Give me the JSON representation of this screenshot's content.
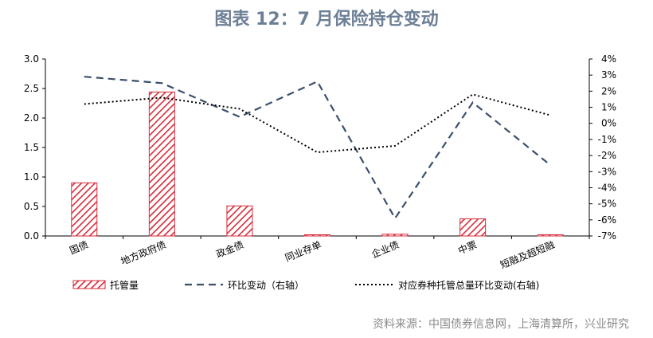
{
  "title": "图表 12：7 月保险持仓变动",
  "source": "资料来源：中国债券信息网，上海清算所，兴业研究",
  "colors": {
    "bar": "#d62b3a",
    "dashed": "#3b4f6b",
    "dotted": "#000000",
    "axis": "#000000"
  },
  "chart_data": {
    "type": "bar",
    "categories": [
      "国债",
      "地方政府债",
      "政金债",
      "同业存单",
      "企业债",
      "中票",
      "短融及超短融"
    ],
    "series": [
      {
        "name": "托管量",
        "type": "bar",
        "axis": "left",
        "values": [
          0.9,
          2.44,
          0.51,
          0.02,
          0.03,
          0.29,
          0.0
        ]
      },
      {
        "name": "环比变动（右轴）",
        "type": "line-dashed",
        "axis": "right",
        "values": [
          2.9,
          2.5,
          0.4,
          2.6,
          -5.9,
          1.3,
          -2.6
        ]
      },
      {
        "name": "对应券种托管总量环比变动(右轴)",
        "type": "line-dotted",
        "axis": "right",
        "values": [
          1.2,
          1.6,
          0.9,
          -1.8,
          -1.4,
          1.8,
          0.5
        ]
      }
    ],
    "left_axis": {
      "ylim": [
        0,
        3.0
      ],
      "ticks": [
        "0.0",
        "0.5",
        "1.0",
        "1.5",
        "2.0",
        "2.5",
        "3.0"
      ]
    },
    "right_axis": {
      "ylim": [
        -7,
        4
      ],
      "ticks": [
        "-7%",
        "-6%",
        "-5%",
        "-4%",
        "-3%",
        "-2%",
        "-1%",
        "0%",
        "1%",
        "2%",
        "3%",
        "4%"
      ]
    },
    "grid": false,
    "legend_position": "bottom"
  }
}
